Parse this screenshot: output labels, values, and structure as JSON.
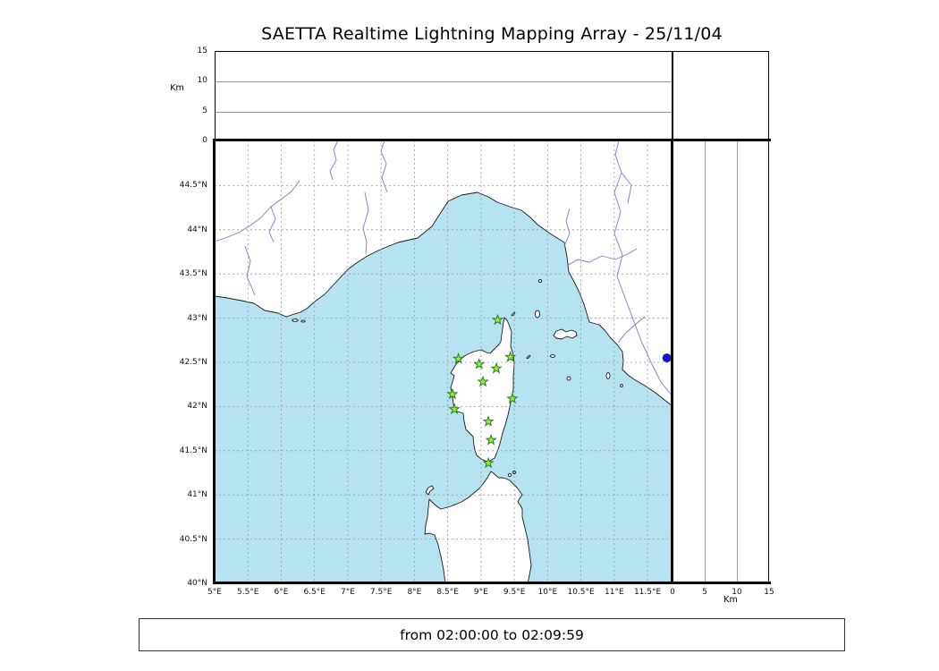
{
  "title": "SAETTA Realtime Lightning Mapping Array - 25/11/04",
  "footer": {
    "time_range": "from 02:00:00 to 02:09:59"
  },
  "altitude_panel": {
    "axis_label": "Km",
    "ticks": [
      {
        "v": 15,
        "label": "15"
      },
      {
        "v": 10,
        "label": "10"
      },
      {
        "v": 5,
        "label": "5"
      },
      {
        "v": 0,
        "label": "0"
      }
    ]
  },
  "right_panel": {
    "axis_label": "Km",
    "ticks": [
      {
        "v": 0,
        "label": "0"
      },
      {
        "v": 5,
        "label": "5"
      },
      {
        "v": 10,
        "label": "10"
      },
      {
        "v": 15,
        "label": "15"
      }
    ]
  },
  "map_panel": {
    "lat_ticks": [
      {
        "v": 44.5,
        "label": "44.5°N"
      },
      {
        "v": 44,
        "label": "44°N"
      },
      {
        "v": 43.5,
        "label": "43.5°N"
      },
      {
        "v": 43,
        "label": "43°N"
      },
      {
        "v": 42.5,
        "label": "42.5°N"
      },
      {
        "v": 42,
        "label": "42°N"
      },
      {
        "v": 41.5,
        "label": "41.5°N"
      },
      {
        "v": 41,
        "label": "41°N"
      },
      {
        "v": 40.5,
        "label": "40.5°N"
      },
      {
        "v": 40,
        "label": "40°N"
      }
    ],
    "lon_ticks": [
      {
        "v": 5,
        "label": "5°E"
      },
      {
        "v": 5.5,
        "label": "5.5°E"
      },
      {
        "v": 6,
        "label": "6°E"
      },
      {
        "v": 6.5,
        "label": "6.5°E"
      },
      {
        "v": 7,
        "label": "7°E"
      },
      {
        "v": 7.5,
        "label": "7.5°E"
      },
      {
        "v": 8,
        "label": "8°E"
      },
      {
        "v": 8.5,
        "label": "8.5°E"
      },
      {
        "v": 9,
        "label": "9°E"
      },
      {
        "v": 9.5,
        "label": "9.5°E"
      },
      {
        "v": 10,
        "label": "10°E"
      },
      {
        "v": 10.5,
        "label": "10.5°E"
      },
      {
        "v": 11,
        "label": "11°E"
      },
      {
        "v": 11.5,
        "label": "11.5°E"
      }
    ]
  },
  "chart_data": {
    "type": "scatter",
    "title": "SAETTA Realtime Lightning Mapping Array - 25/11/04",
    "subtitle": "from 02:00:00 to 02:09:59",
    "layout": "LMA composite: altitude-vs-longitude strip (top), lon-lat map (center), altitude-vs-latitude strip (right); dashed 0.5-degree grid",
    "map": {
      "lon_range": [
        5,
        11.875
      ],
      "lat_range": [
        40,
        45.01
      ],
      "grid_step_deg": 0.5,
      "grid": "dashed"
    },
    "altitude_axis": {
      "label": "Km",
      "range": [
        0,
        15
      ],
      "gridlines_km": [
        5,
        10
      ]
    },
    "stations_legend": "green stars = SAETTA LMA stations on Corsica",
    "stations": [
      {
        "lon": 9.25,
        "lat": 42.98
      },
      {
        "lon": 8.66,
        "lat": 42.54
      },
      {
        "lon": 8.97,
        "lat": 42.48
      },
      {
        "lon": 9.23,
        "lat": 42.43
      },
      {
        "lon": 9.44,
        "lat": 42.56
      },
      {
        "lon": 9.03,
        "lat": 42.28
      },
      {
        "lon": 8.57,
        "lat": 42.14
      },
      {
        "lon": 9.47,
        "lat": 42.09
      },
      {
        "lon": 8.6,
        "lat": 41.97
      },
      {
        "lon": 9.11,
        "lat": 41.83
      },
      {
        "lon": 9.15,
        "lat": 41.62
      },
      {
        "lon": 9.11,
        "lat": 41.36
      }
    ],
    "sources": [
      {
        "lon": 11.79,
        "lat": 42.55,
        "marker": "filled blue circle at eastern map edge"
      }
    ],
    "colors": {
      "sea": "#b5e4f0",
      "land": "#ffffff",
      "coast": "#1a1a1a",
      "river": "#7b7bd0",
      "grid": "#999999",
      "station_fill": "#9bef3f",
      "station_edge": "#2a7f1f",
      "source": "#1515cc",
      "frame": "#000000"
    }
  }
}
